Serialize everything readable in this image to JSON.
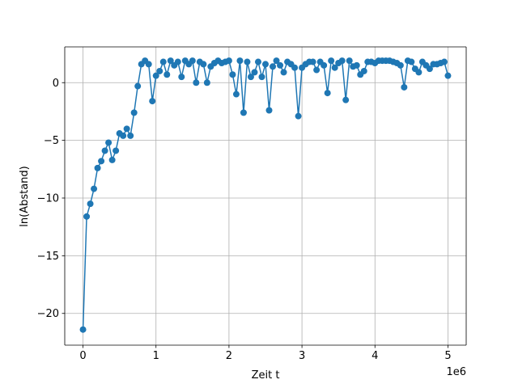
{
  "chart_data": {
    "type": "line",
    "title": "",
    "xlabel": "Zeit t",
    "ylabel": "ln(Abstand)",
    "x_offset_label": "1e6",
    "xlim": [
      -250000,
      5250000
    ],
    "ylim": [
      -22.75,
      3.1
    ],
    "xticks": [
      0,
      1000000,
      2000000,
      3000000,
      4000000,
      5000000
    ],
    "xtick_labels": [
      "0",
      "1",
      "2",
      "3",
      "4",
      "5"
    ],
    "yticks": [
      -20,
      -15,
      -10,
      -5,
      0
    ],
    "ytick_labels": [
      "−20",
      "−15",
      "−10",
      "−5",
      "0"
    ],
    "grid": true,
    "marker": "circle",
    "series": [
      {
        "color": "#1f77b4",
        "x": [
          0,
          50000,
          100000,
          150000,
          200000,
          250000,
          300000,
          350000,
          400000,
          450000,
          500000,
          550000,
          600000,
          650000,
          700000,
          750000,
          800000,
          850000,
          900000,
          950000,
          1000000,
          1050000,
          1100000,
          1150000,
          1200000,
          1250000,
          1300000,
          1350000,
          1400000,
          1450000,
          1500000,
          1550000,
          1600000,
          1650000,
          1700000,
          1750000,
          1800000,
          1850000,
          1900000,
          1950000,
          2000000,
          2050000,
          2100000,
          2150000,
          2200000,
          2250000,
          2300000,
          2350000,
          2400000,
          2450000,
          2500000,
          2550000,
          2600000,
          2650000,
          2700000,
          2750000,
          2800000,
          2850000,
          2900000,
          2950000,
          3000000,
          3050000,
          3100000,
          3150000,
          3200000,
          3250000,
          3300000,
          3350000,
          3400000,
          3450000,
          3500000,
          3550000,
          3600000,
          3650000,
          3700000,
          3750000,
          3800000,
          3850000,
          3900000,
          3950000,
          4000000,
          4050000,
          4100000,
          4150000,
          4200000,
          4250000,
          4300000,
          4350000,
          4400000,
          4450000,
          4500000,
          4550000,
          4600000,
          4650000,
          4700000,
          4750000,
          4800000,
          4850000,
          4900000,
          4950000,
          5000000
        ],
        "y": [
          -21.4,
          -11.6,
          -10.5,
          -9.2,
          -7.4,
          -6.8,
          -5.9,
          -5.2,
          -6.7,
          -5.9,
          -4.4,
          -4.6,
          -4.0,
          -4.6,
          -2.6,
          -0.3,
          1.6,
          1.9,
          1.6,
          -1.6,
          0.6,
          1.0,
          1.8,
          0.7,
          1.9,
          1.5,
          1.8,
          0.5,
          1.9,
          1.6,
          1.9,
          0.0,
          1.8,
          1.6,
          0.0,
          1.4,
          1.7,
          1.9,
          1.7,
          1.8,
          1.9,
          0.7,
          -1.0,
          1.9,
          -2.6,
          1.8,
          0.5,
          0.9,
          1.8,
          0.5,
          1.6,
          -2.4,
          1.4,
          1.9,
          1.5,
          0.9,
          1.8,
          1.6,
          1.3,
          -2.9,
          1.3,
          1.6,
          1.8,
          1.8,
          1.1,
          1.8,
          1.5,
          -0.9,
          1.9,
          1.3,
          1.7,
          1.9,
          -1.5,
          1.9,
          1.4,
          1.5,
          0.7,
          1.0,
          1.8,
          1.8,
          1.7,
          1.9,
          1.9,
          1.9,
          1.9,
          1.8,
          1.7,
          1.5,
          -0.4,
          1.9,
          1.8,
          1.2,
          0.9,
          1.8,
          1.5,
          1.2,
          1.6,
          1.6,
          1.7,
          1.8,
          0.6
        ]
      }
    ]
  }
}
